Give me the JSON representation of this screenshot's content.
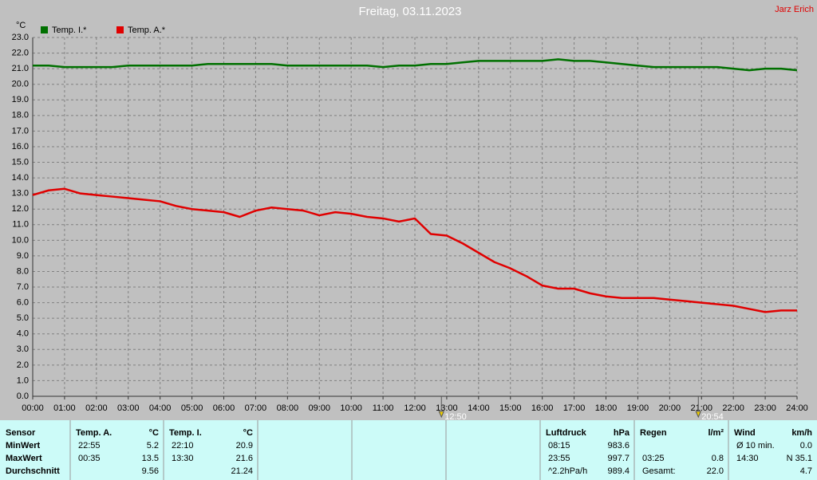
{
  "chart_data": {
    "type": "line",
    "title": "Freitag, 03.11.2023",
    "author": "Jarz Erich",
    "y_unit": "°C",
    "grid": true,
    "xlim": [
      0,
      24
    ],
    "xticks": [
      {
        "value": 0,
        "label": "00:00"
      },
      {
        "value": 1,
        "label": "01:00"
      },
      {
        "value": 2,
        "label": "02:00"
      },
      {
        "value": 3,
        "label": "03:00"
      },
      {
        "value": 4,
        "label": "04:00"
      },
      {
        "value": 5,
        "label": "05:00"
      },
      {
        "value": 6,
        "label": "06:00"
      },
      {
        "value": 7,
        "label": "07:00"
      },
      {
        "value": 8,
        "label": "08:00"
      },
      {
        "value": 9,
        "label": "09:00"
      },
      {
        "value": 10,
        "label": "10:00"
      },
      {
        "value": 11,
        "label": "11:00"
      },
      {
        "value": 12,
        "label": "12:00"
      },
      {
        "value": 13,
        "label": "13:00"
      },
      {
        "value": 14,
        "label": "14:00"
      },
      {
        "value": 15,
        "label": "15:00"
      },
      {
        "value": 16,
        "label": "16:00"
      },
      {
        "value": 17,
        "label": "17:00"
      },
      {
        "value": 18,
        "label": "18:00"
      },
      {
        "value": 19,
        "label": "19:00"
      },
      {
        "value": 20,
        "label": "20:00"
      },
      {
        "value": 21,
        "label": "21:00"
      },
      {
        "value": 22,
        "label": "22:00"
      },
      {
        "value": 23,
        "label": "23:00"
      },
      {
        "value": 24,
        "label": "24:00"
      }
    ],
    "ylim": [
      0,
      23
    ],
    "yticks": [
      {
        "value": 0,
        "label": "0.0"
      },
      {
        "value": 1,
        "label": "1.0"
      },
      {
        "value": 2,
        "label": "2.0"
      },
      {
        "value": 3,
        "label": "3.0"
      },
      {
        "value": 4,
        "label": "4.0"
      },
      {
        "value": 5,
        "label": "5.0"
      },
      {
        "value": 6,
        "label": "6.0"
      },
      {
        "value": 7,
        "label": "7.0"
      },
      {
        "value": 8,
        "label": "8.0"
      },
      {
        "value": 9,
        "label": "9.0"
      },
      {
        "value": 10,
        "label": "10.0"
      },
      {
        "value": 11,
        "label": "11.0"
      },
      {
        "value": 12,
        "label": "12.0"
      },
      {
        "value": 13,
        "label": "13.0"
      },
      {
        "value": 14,
        "label": "14.0"
      },
      {
        "value": 15,
        "label": "15.0"
      },
      {
        "value": 16,
        "label": "16.0"
      },
      {
        "value": 17,
        "label": "17.0"
      },
      {
        "value": 18,
        "label": "18.0"
      },
      {
        "value": 19,
        "label": "19.0"
      },
      {
        "value": 20,
        "label": "20.0"
      },
      {
        "value": 21,
        "label": "21.0"
      },
      {
        "value": 22,
        "label": "22.0"
      },
      {
        "value": 23,
        "label": "23.0"
      }
    ],
    "x": [
      0,
      0.5,
      1,
      1.5,
      2,
      2.5,
      3,
      3.5,
      4,
      4.5,
      5,
      5.5,
      6,
      6.5,
      7,
      7.5,
      8,
      8.5,
      9,
      9.5,
      10,
      10.5,
      11,
      11.5,
      12,
      12.5,
      13,
      13.5,
      14,
      14.5,
      15,
      15.5,
      16,
      16.5,
      17,
      17.5,
      18,
      18.5,
      19,
      19.5,
      20,
      20.5,
      21,
      21.5,
      22,
      22.5,
      23,
      23.5,
      24
    ],
    "series": [
      {
        "name": "Temp. I.*",
        "color": "#007000",
        "values": [
          21.2,
          21.2,
          21.1,
          21.1,
          21.1,
          21.1,
          21.2,
          21.2,
          21.2,
          21.2,
          21.2,
          21.3,
          21.3,
          21.3,
          21.3,
          21.3,
          21.2,
          21.2,
          21.2,
          21.2,
          21.2,
          21.2,
          21.1,
          21.2,
          21.2,
          21.3,
          21.3,
          21.4,
          21.5,
          21.5,
          21.5,
          21.5,
          21.5,
          21.6,
          21.5,
          21.5,
          21.4,
          21.3,
          21.2,
          21.1,
          21.1,
          21.1,
          21.1,
          21.1,
          21.0,
          20.9,
          21.0,
          21.0,
          20.9
        ]
      },
      {
        "name": "Temp. A.*",
        "color": "#e00000",
        "values": [
          12.9,
          13.2,
          13.3,
          13.0,
          12.9,
          12.8,
          12.7,
          12.6,
          12.5,
          12.2,
          12.0,
          11.9,
          11.8,
          11.5,
          11.9,
          12.1,
          12.0,
          11.9,
          11.6,
          11.8,
          11.7,
          11.5,
          11.4,
          11.2,
          11.4,
          10.4,
          10.3,
          9.8,
          9.2,
          8.6,
          8.2,
          7.7,
          7.1,
          6.9,
          6.9,
          6.6,
          6.4,
          6.3,
          6.3,
          6.3,
          6.2,
          6.1,
          6.0,
          5.9,
          5.8,
          5.6,
          5.4,
          5.5,
          5.5
        ]
      }
    ],
    "markers": [
      {
        "x": 12.833,
        "label": "12:50"
      },
      {
        "x": 20.9,
        "label": "20:54"
      }
    ]
  },
  "table": {
    "corner": "Sensor",
    "row_labels": [
      "MinWert",
      "MaxWert",
      "Durchschnitt"
    ],
    "blocks": [
      {
        "title": "Temp. A.",
        "unit": "°C",
        "rows": [
          [
            "22:55",
            "5.2"
          ],
          [
            "00:35",
            "13.5"
          ],
          [
            null,
            "9.56"
          ]
        ]
      },
      {
        "title": "Temp. I.",
        "unit": "°C",
        "rows": [
          [
            "22:10",
            "20.9"
          ],
          [
            "13:30",
            "21.6"
          ],
          [
            null,
            "21.24"
          ]
        ]
      },
      {
        "title": "Luftdruck",
        "unit": "hPa",
        "rows": [
          [
            "08:15",
            "983.6"
          ],
          [
            "23:55",
            "997.7"
          ],
          [
            "^2.2hPa/h",
            "989.4"
          ]
        ]
      },
      {
        "title": "Regen",
        "unit": "l/m²",
        "rows": [
          [
            null,
            null
          ],
          [
            "03:25",
            "0.8"
          ],
          [
            "Gesamt:",
            "22.0"
          ]
        ]
      },
      {
        "title": "Wind",
        "unit": "km/h",
        "rows": [
          [
            "Ø 10 min.",
            "0.0"
          ],
          [
            "14:30",
            "N 35.1"
          ],
          [
            null,
            "4.7"
          ]
        ]
      }
    ]
  }
}
